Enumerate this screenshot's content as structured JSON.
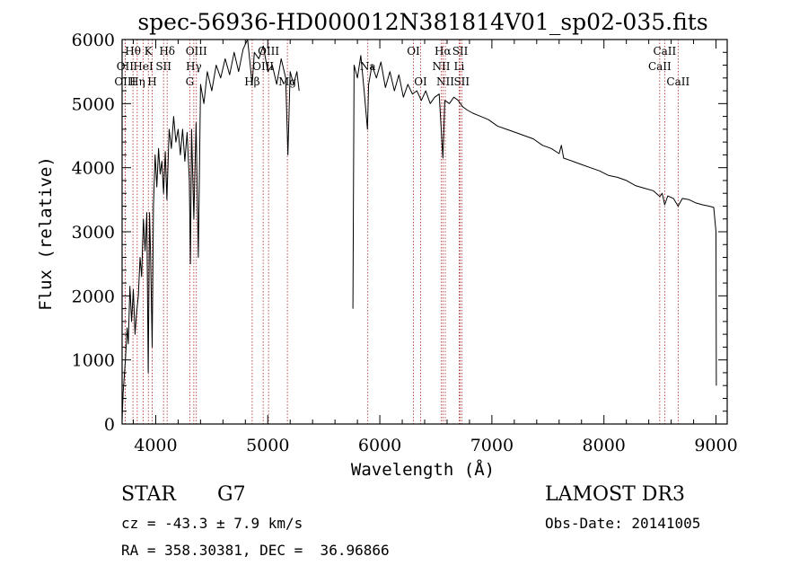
{
  "chart_data": {
    "type": "line",
    "title": "spec-56936-HD000012N381814V01_sp02-035.fits",
    "xlabel": "Wavelength (Å)",
    "ylabel": "Flux (relative)",
    "xlim": [
      3700,
      9100
    ],
    "ylim": [
      0,
      6000
    ],
    "x_ticks": [
      4000,
      5000,
      6000,
      7000,
      8000,
      9000
    ],
    "x_tick_labels": [
      "4000",
      "5000",
      "6000",
      "7000",
      "8000",
      "9000"
    ],
    "y_ticks": [
      0,
      1000,
      2000,
      3000,
      4000,
      5000,
      6000
    ],
    "y_tick_labels": [
      "0",
      "1000",
      "2000",
      "3000",
      "4000",
      "5000",
      "6000"
    ],
    "series": [
      {
        "name": "spectrum",
        "segments": [
          [
            [
              3700,
              50
            ],
            [
              3710,
              500
            ],
            [
              3730,
              1000
            ],
            [
              3745,
              1500
            ],
            [
              3755,
              1250
            ],
            [
              3770,
              2150
            ],
            [
              3785,
              1600
            ],
            [
              3800,
              2100
            ],
            [
              3815,
              1400
            ],
            [
              3830,
              1750
            ],
            [
              3845,
              2000
            ],
            [
              3860,
              2600
            ],
            [
              3875,
              2300
            ],
            [
              3890,
              3200
            ],
            [
              3905,
              2700
            ],
            [
              3920,
              3300
            ],
            [
              3933,
              800
            ],
            [
              3945,
              3300
            ],
            [
              3955,
              2600
            ],
            [
              3968,
              1200
            ],
            [
              3980,
              3400
            ],
            [
              3995,
              4200
            ],
            [
              4010,
              3700
            ],
            [
              4025,
              4300
            ],
            [
              4040,
              3900
            ],
            [
              4055,
              4100
            ],
            [
              4070,
              3600
            ],
            [
              4085,
              4250
            ],
            [
              4100,
              3500
            ],
            [
              4120,
              4600
            ],
            [
              4140,
              4300
            ],
            [
              4160,
              4800
            ],
            [
              4180,
              4400
            ],
            [
              4200,
              4600
            ],
            [
              4220,
              4200
            ],
            [
              4240,
              4600
            ],
            [
              4260,
              4100
            ],
            [
              4280,
              4550
            ],
            [
              4300,
              3800
            ],
            [
              4310,
              2500
            ],
            [
              4320,
              4600
            ],
            [
              4340,
              3200
            ],
            [
              4360,
              4700
            ],
            [
              4380,
              2600
            ],
            [
              4400,
              5300
            ],
            [
              4430,
              5000
            ],
            [
              4460,
              5500
            ],
            [
              4500,
              5200
            ],
            [
              4540,
              5600
            ],
            [
              4580,
              5400
            ],
            [
              4620,
              5700
            ],
            [
              4660,
              5450
            ],
            [
              4700,
              5800
            ],
            [
              4740,
              5500
            ],
            [
              4780,
              5850
            ],
            [
              4820,
              6000
            ],
            [
              4861,
              5300
            ],
            [
              4880,
              5800
            ],
            [
              4920,
              5700
            ],
            [
              4960,
              5900
            ],
            [
              5000,
              5500
            ],
            [
              5040,
              5600
            ],
            [
              5080,
              5300
            ],
            [
              5120,
              5700
            ],
            [
              5160,
              5400
            ],
            [
              5180,
              4200
            ],
            [
              5200,
              5500
            ],
            [
              5230,
              5300
            ],
            [
              5260,
              5500
            ],
            [
              5280,
              5200
            ]
          ],
          [
            [
              5760,
              1800
            ],
            [
              5770,
              5600
            ],
            [
              5800,
              5400
            ],
            [
              5830,
              5750
            ],
            [
              5860,
              5200
            ],
            [
              5890,
              4600
            ],
            [
              5900,
              5300
            ],
            [
              5930,
              5600
            ],
            [
              5970,
              5400
            ],
            [
              6010,
              5650
            ],
            [
              6050,
              5250
            ],
            [
              6090,
              5500
            ],
            [
              6130,
              5200
            ],
            [
              6170,
              5450
            ],
            [
              6210,
              5100
            ],
            [
              6250,
              5300
            ],
            [
              6290,
              5150
            ],
            [
              6330,
              5200
            ],
            [
              6370,
              5050
            ],
            [
              6410,
              5200
            ],
            [
              6450,
              5000
            ],
            [
              6490,
              5100
            ],
            [
              6530,
              5150
            ],
            [
              6563,
              4150
            ],
            [
              6580,
              5050
            ],
            [
              6620,
              5000
            ],
            [
              6660,
              5100
            ],
            [
              6700,
              5050
            ],
            [
              6740,
              4950
            ],
            [
              6780,
              4900
            ],
            [
              6830,
              4850
            ],
            [
              6900,
              4800
            ],
            [
              6970,
              4750
            ],
            [
              7050,
              4650
            ],
            [
              7130,
              4600
            ],
            [
              7210,
              4550
            ],
            [
              7290,
              4500
            ],
            [
              7370,
              4450
            ],
            [
              7450,
              4350
            ],
            [
              7530,
              4300
            ],
            [
              7600,
              4220
            ],
            [
              7620,
              4350
            ],
            [
              7640,
              4150
            ],
            [
              7720,
              4100
            ],
            [
              7800,
              4050
            ],
            [
              7880,
              4000
            ],
            [
              7960,
              3950
            ],
            [
              8040,
              3880
            ],
            [
              8120,
              3850
            ],
            [
              8200,
              3800
            ],
            [
              8280,
              3720
            ],
            [
              8360,
              3680
            ],
            [
              8440,
              3640
            ],
            [
              8498,
              3550
            ],
            [
              8520,
              3600
            ],
            [
              8542,
              3420
            ],
            [
              8570,
              3560
            ],
            [
              8620,
              3520
            ],
            [
              8662,
              3400
            ],
            [
              8700,
              3520
            ],
            [
              8760,
              3500
            ],
            [
              8820,
              3450
            ],
            [
              8880,
              3420
            ],
            [
              8940,
              3400
            ],
            [
              8980,
              3380
            ],
            [
              9000,
              3000
            ],
            [
              9003,
              600
            ]
          ]
        ]
      }
    ],
    "spectral_lines": [
      {
        "label": "Hθ",
        "x": 3797,
        "row": 0
      },
      {
        "label": "K",
        "x": 3934,
        "row": 0
      },
      {
        "label": "Hδ",
        "x": 4102,
        "row": 0
      },
      {
        "label": "OII",
        "x": 3727,
        "row": 1
      },
      {
        "label": "HeI",
        "x": 3889,
        "row": 1
      },
      {
        "label": "SII",
        "x": 4070,
        "row": 1
      },
      {
        "label": "OIII",
        "x": 3727,
        "row": 2
      },
      {
        "label": "Hη",
        "x": 3835,
        "row": 2
      },
      {
        "label": "H",
        "x": 3968,
        "row": 2
      },
      {
        "label": "OIII",
        "x": 4363,
        "row": 0
      },
      {
        "label": "Hγ",
        "x": 4340,
        "row": 1
      },
      {
        "label": "G",
        "x": 4304,
        "row": 2
      },
      {
        "label": "OIII",
        "x": 5007,
        "row": 0
      },
      {
        "label": "OIII",
        "x": 4959,
        "row": 1
      },
      {
        "label": "Hβ",
        "x": 4861,
        "row": 2
      },
      {
        "label": "Mg",
        "x": 5175,
        "row": 2
      },
      {
        "label": "Na",
        "x": 5893,
        "row": 1
      },
      {
        "label": "OI",
        "x": 6300,
        "row": 0
      },
      {
        "label": "OI",
        "x": 6364,
        "row": 2
      },
      {
        "label": "Hα",
        "x": 6563,
        "row": 0
      },
      {
        "label": "SII",
        "x": 6717,
        "row": 0
      },
      {
        "label": "NII",
        "x": 6548,
        "row": 1
      },
      {
        "label": "Li",
        "x": 6708,
        "row": 1
      },
      {
        "label": "NII",
        "x": 6584,
        "row": 2
      },
      {
        "label": "SII",
        "x": 6731,
        "row": 2
      },
      {
        "label": "CaII",
        "x": 8542,
        "row": 0
      },
      {
        "label": "CaII",
        "x": 8498,
        "row": 1
      },
      {
        "label": "CaII",
        "x": 8662,
        "row": 2
      }
    ]
  },
  "info": {
    "object_class": "STAR",
    "subclass": "G7",
    "survey": "LAMOST DR3",
    "redshift_text": "cz = -43.3 ± 7.9 km/s",
    "obs_date_text": "Obs-Date: 20141005",
    "coords_text": "RA = 358.30381, DEC =  36.96866"
  },
  "colors": {
    "spectrum": "#000000",
    "line_markers": "#b22222",
    "axes": "#000000"
  }
}
